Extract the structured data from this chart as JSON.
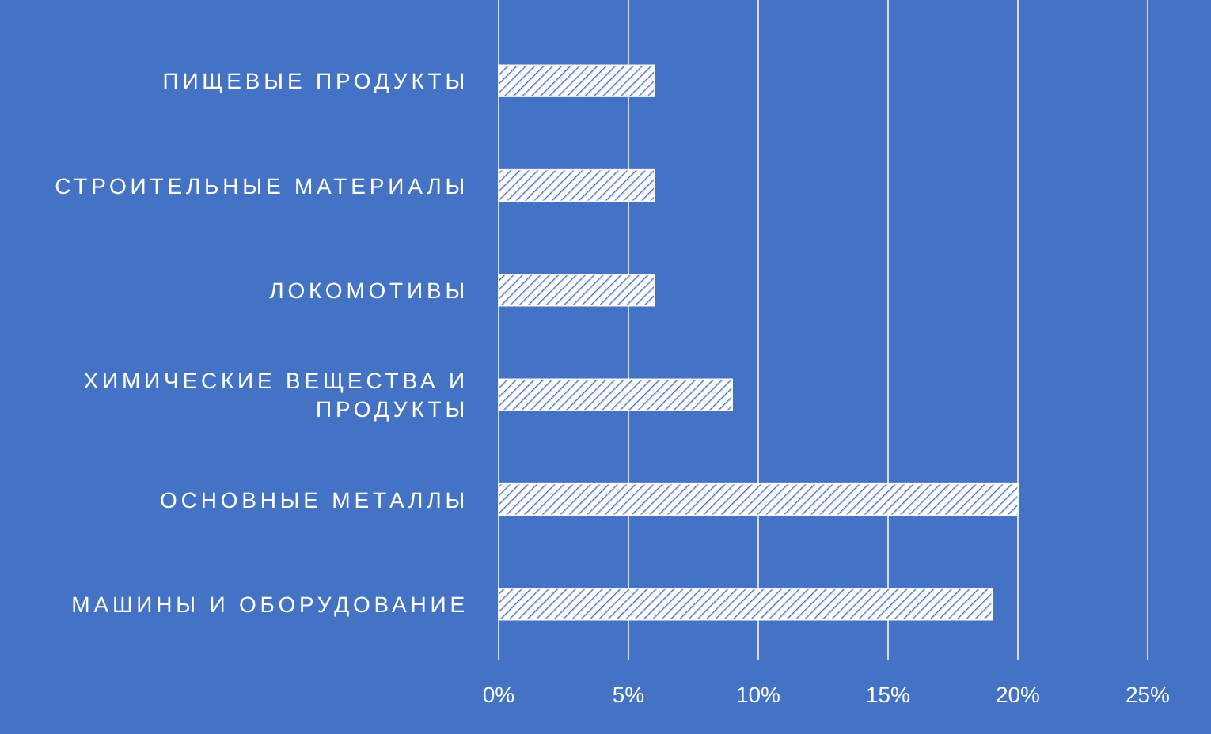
{
  "chart_data": {
    "type": "bar",
    "orientation": "horizontal",
    "categories": [
      "ПИЩЕВЫЕ ПРОДУКТЫ",
      "СТРОИТЕЛЬНЫЕ МАТЕРИАЛЫ",
      "ЛОКОМОТИВЫ",
      "ХИМИЧЕСКИЕ ВЕЩЕСТВА И ПРОДУКТЫ",
      "ОСНОВНЫЕ МЕТАЛЛЫ",
      "МАШИНЫ И ОБОРУДОВАНИЕ"
    ],
    "values": [
      6,
      6,
      6,
      9,
      20,
      19
    ],
    "color": "#ffffff",
    "xlim": [
      0,
      25
    ],
    "xticks": [
      {
        "value": 0,
        "label": "0%"
      },
      {
        "value": 5,
        "label": "5%"
      },
      {
        "value": 10,
        "label": "10%"
      },
      {
        "value": 15,
        "label": "15%"
      },
      {
        "value": 20,
        "label": "20%"
      },
      {
        "value": 25,
        "label": "25%"
      }
    ],
    "grid": "x"
  }
}
